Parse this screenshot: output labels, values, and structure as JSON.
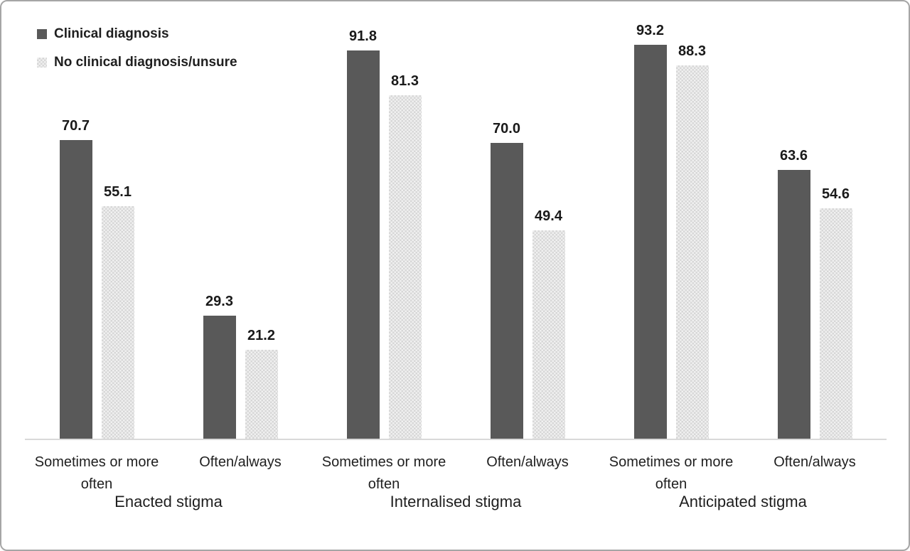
{
  "chart_data": {
    "type": "bar",
    "title": "",
    "xlabel": "",
    "ylabel": "",
    "ylim": [
      0,
      100
    ],
    "grid": false,
    "legend_position": "top-left",
    "value_label_format": "1-decimal",
    "categories": [
      "Sometimes or more often",
      "Often/always",
      "Sometimes or more often",
      "Often/always",
      "Sometimes or more often",
      "Often/always"
    ],
    "group_labels": [
      "Enacted stigma",
      "Internalised stigma",
      "Anticipated stigma"
    ],
    "series": [
      {
        "name": "Clinical diagnosis",
        "fill": "solid",
        "color": "#595959",
        "values": [
          70.7,
          29.3,
          91.8,
          70.0,
          93.2,
          63.6
        ]
      },
      {
        "name": "No clinical diagnosis/unsure",
        "fill": "dotted-pattern",
        "color": "#e4e4e4",
        "values": [
          55.1,
          21.2,
          81.3,
          49.4,
          88.3,
          54.6
        ]
      }
    ],
    "colors": {
      "axis_line": "#d9d9d9",
      "text": "#1f1f1f",
      "frame_border": "#a6a6a6",
      "background": "#ffffff"
    }
  }
}
